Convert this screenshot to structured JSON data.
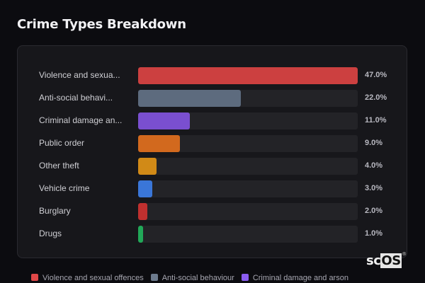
{
  "header": {
    "title": "Crime Types Breakdown"
  },
  "rows": [
    {
      "label": "Violence and sexua...",
      "full_label": "Violence and sexual offences",
      "value": 47.0,
      "pct": "47.0%",
      "color": "#cc4040"
    },
    {
      "label": "Anti-social behavi...",
      "full_label": "Anti-social behaviour",
      "value": 22.0,
      "pct": "22.0%",
      "color": "#5d6b7e"
    },
    {
      "label": "Criminal damage an...",
      "full_label": "Criminal damage and arson",
      "value": 11.0,
      "pct": "11.0%",
      "color": "#7a4fd0"
    },
    {
      "label": "Public order",
      "full_label": "Public order",
      "value": 9.0,
      "pct": "9.0%",
      "color": "#d2691e"
    },
    {
      "label": "Other theft",
      "full_label": "Other theft",
      "value": 4.0,
      "pct": "4.0%",
      "color": "#d18a17"
    },
    {
      "label": "Vehicle crime",
      "full_label": "Vehicle crime",
      "value": 3.0,
      "pct": "3.0%",
      "color": "#3a76d8"
    },
    {
      "label": "Burglary",
      "full_label": "Burglary",
      "value": 2.0,
      "pct": "2.0%",
      "color": "#c0302f"
    },
    {
      "label": "Drugs",
      "full_label": "Drugs",
      "value": 1.0,
      "pct": "1.0%",
      "color": "#21a858"
    }
  ],
  "legend": [
    {
      "label": "Violence and sexual offences",
      "color": "#e04848"
    },
    {
      "label": "Anti-social behaviour",
      "color": "#6d7b8e"
    },
    {
      "label": "Criminal damage and arson",
      "color": "#8a5cf0"
    }
  ],
  "watermark": {
    "sc": "sc",
    "os": "OS",
    "reg": "®"
  },
  "chart_data": {
    "type": "bar",
    "orientation": "horizontal",
    "title": "Crime Types Breakdown",
    "categories": [
      "Violence and sexual offences",
      "Anti-social behaviour",
      "Criminal damage and arson",
      "Public order",
      "Other theft",
      "Vehicle crime",
      "Burglary",
      "Drugs"
    ],
    "values": [
      47.0,
      22.0,
      11.0,
      9.0,
      4.0,
      3.0,
      2.0,
      1.0
    ],
    "unit": "%",
    "xlim": [
      0,
      47
    ],
    "colors": [
      "#cc4040",
      "#5d6b7e",
      "#7a4fd0",
      "#d2691e",
      "#d18a17",
      "#3a76d8",
      "#c0302f",
      "#21a858"
    ],
    "legend_position": "bottom",
    "grid": false
  }
}
